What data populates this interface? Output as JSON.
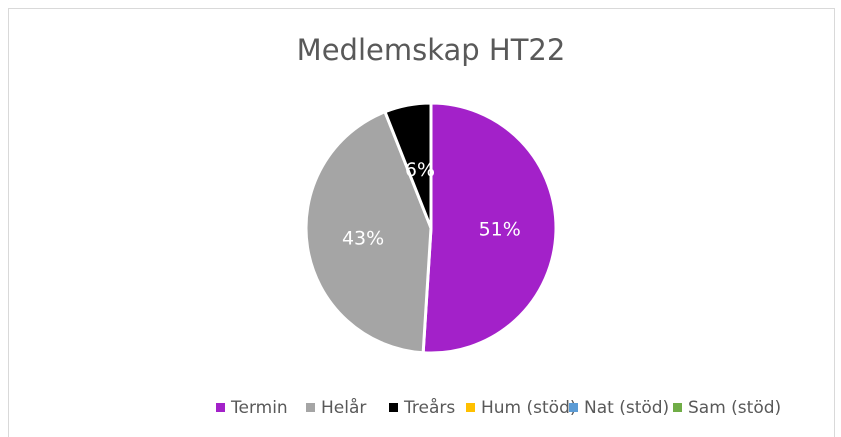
{
  "chart_data": {
    "type": "pie",
    "title": "Medlemskap HT22",
    "categories": [
      "Termin",
      "Helår",
      "Treårs",
      "Hum (stöd)",
      "Nat (stöd)",
      "Sam (stöd)"
    ],
    "values": [
      51,
      43,
      6,
      0,
      0,
      0
    ],
    "value_labels": [
      "51%",
      "43%",
      "6%",
      null,
      null,
      null
    ],
    "colors": [
      "#a321c9",
      "#a5a5a5",
      "#000000",
      "#ffc000",
      "#5b9bd5",
      "#70ad47"
    ],
    "legend": "bottom"
  }
}
